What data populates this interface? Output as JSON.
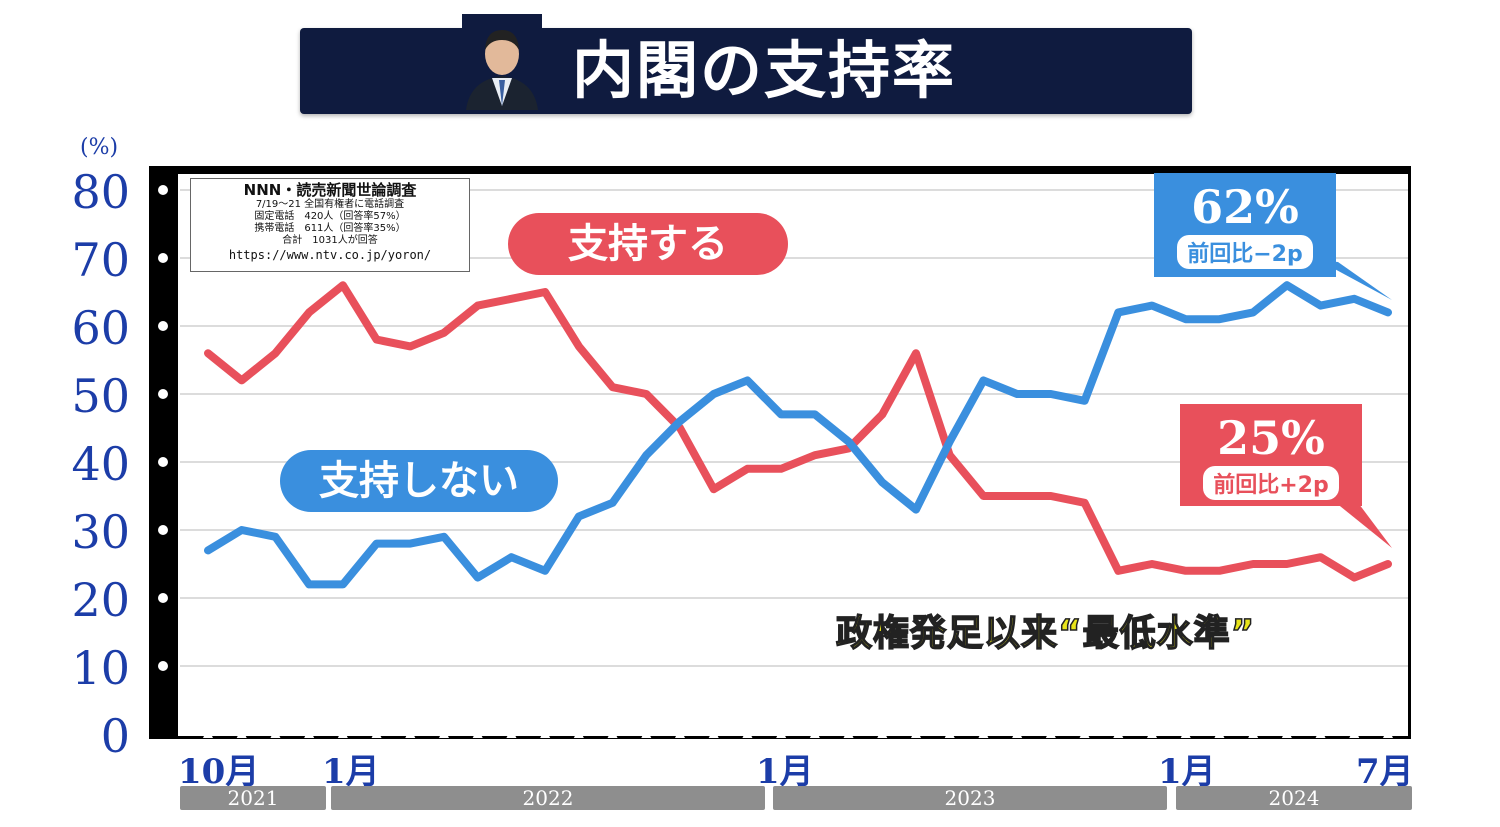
{
  "title": "内閣の支持率",
  "source": {
    "title": "NNN・読売新聞世論調査",
    "line1": "7/19〜21 全国有権者に電話調査",
    "line2": "固定電話　420人（回答率57%）",
    "line3": "携帯電話　611人（回答率35%）",
    "line4": "合計　1031人が回答",
    "url": "https://www.ntv.co.jp/yoron/"
  },
  "labels": {
    "support": "支持する",
    "no_support": "支持しない",
    "annotation": "政権発足以来“最低水準”"
  },
  "callouts": {
    "blue_value": "62%",
    "blue_change": "前回比−2p",
    "red_value": "25%",
    "red_change": "前回比+2p"
  },
  "axis": {
    "y_unit": "(%)",
    "months": [
      "10月",
      "1月",
      "1月",
      "1月",
      "7月"
    ],
    "years": [
      "2021",
      "2022",
      "2023",
      "2024"
    ]
  },
  "colors": {
    "support": "#e8505b",
    "no_support": "#3a8fde",
    "title_bg": "#0f1b3f",
    "axis_text": "#1c3da8"
  },
  "chart_data": {
    "type": "line",
    "title": "内閣の支持率",
    "ylabel": "(%)",
    "ylim": [
      0,
      80
    ],
    "yticks": [
      0,
      10,
      20,
      30,
      40,
      50,
      60,
      70,
      80
    ],
    "x_start": "2021-10",
    "x_end": "2024-07",
    "series": [
      {
        "name": "支持する",
        "values": [
          56,
          52,
          56,
          62,
          66,
          58,
          57,
          59,
          63,
          64,
          65,
          57,
          51,
          50,
          45,
          36,
          39,
          39,
          41,
          42,
          47,
          56,
          41,
          35,
          35,
          35,
          34,
          24,
          25,
          24,
          24,
          25,
          25,
          26,
          23,
          25
        ]
      },
      {
        "name": "支持しない",
        "values": [
          27,
          30,
          29,
          22,
          22,
          28,
          28,
          29,
          23,
          26,
          24,
          32,
          34,
          41,
          46,
          50,
          52,
          47,
          47,
          43,
          37,
          33,
          43,
          52,
          50,
          50,
          49,
          62,
          63,
          61,
          61,
          62,
          66,
          63,
          64,
          62
        ]
      }
    ]
  }
}
